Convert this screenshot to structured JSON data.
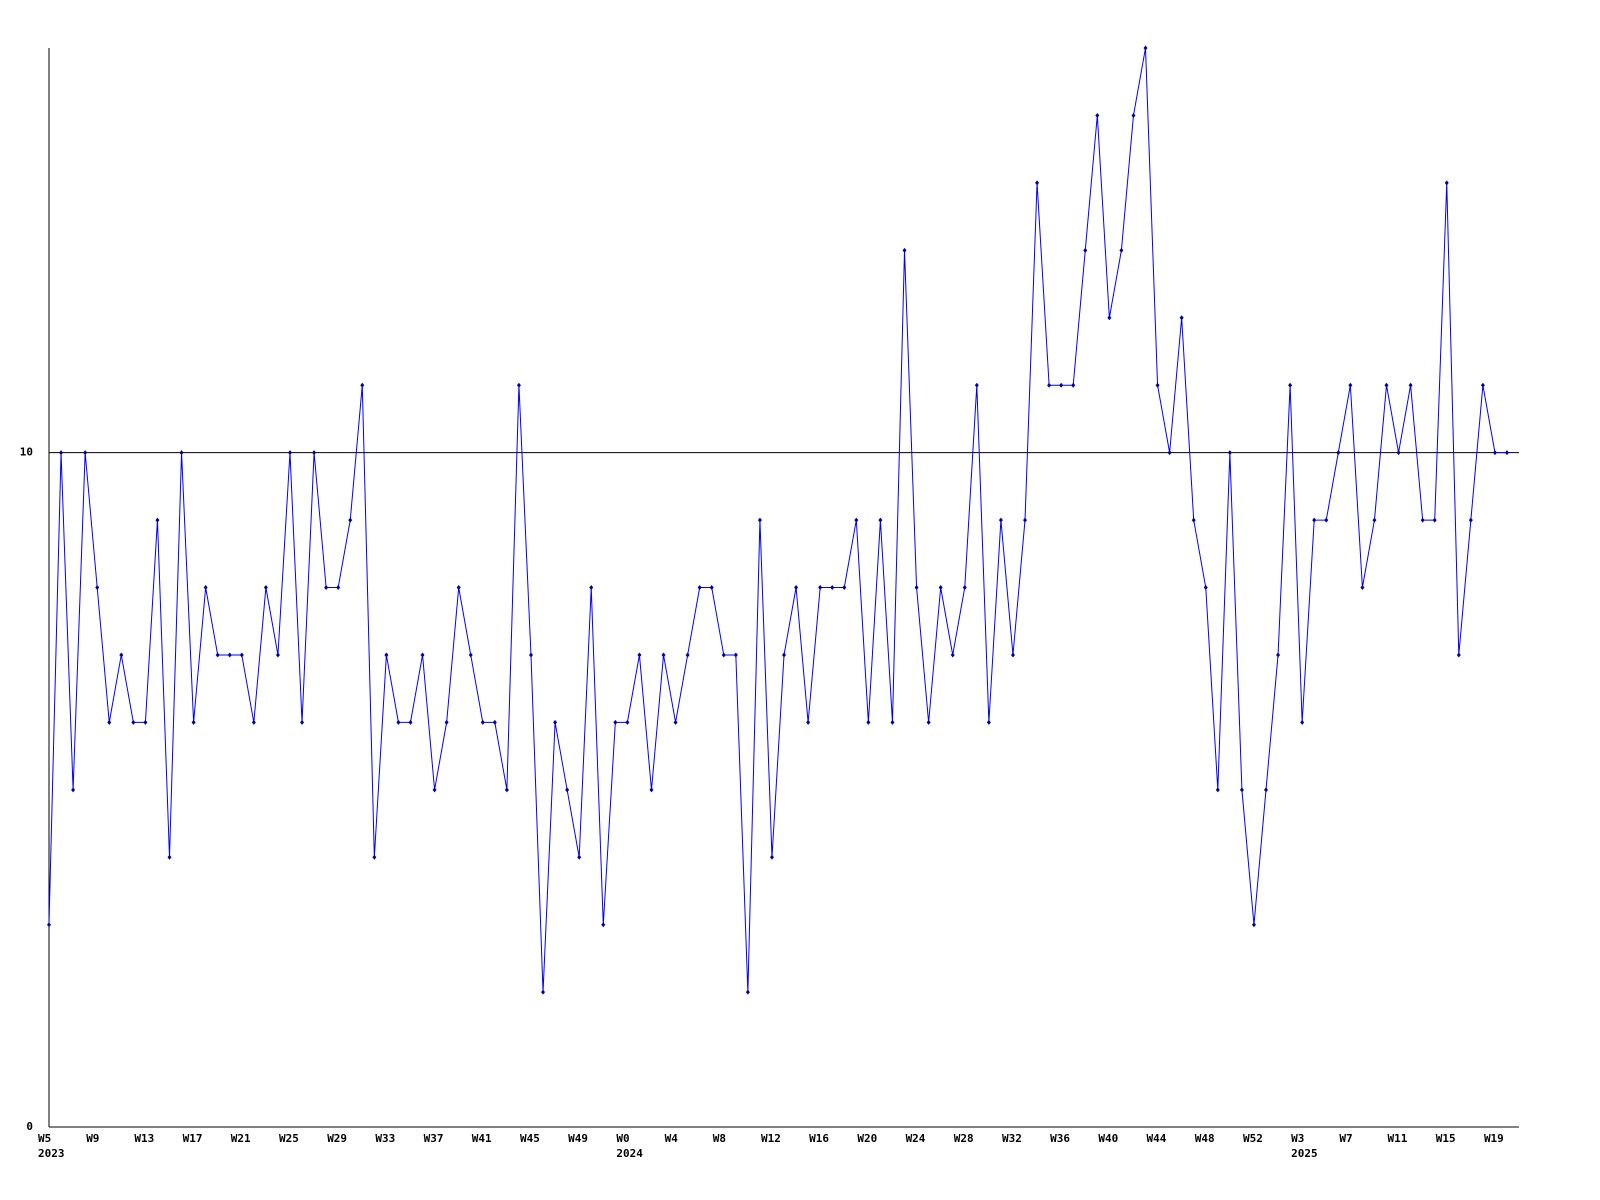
{
  "chart_data": {
    "type": "line",
    "categories": [
      "W5",
      null,
      null,
      null,
      "W9",
      null,
      null,
      null,
      "W13",
      null,
      null,
      null,
      "W17",
      null,
      null,
      null,
      "W21",
      null,
      null,
      null,
      "W25",
      null,
      null,
      null,
      "W29",
      null,
      null,
      null,
      "W33",
      null,
      null,
      null,
      "W37",
      null,
      null,
      null,
      "W41",
      null,
      null,
      null,
      "W45",
      null,
      null,
      null,
      "W49",
      null,
      null,
      null,
      "W0",
      null,
      null,
      null,
      "W4",
      null,
      null,
      null,
      "W8",
      null,
      null,
      null,
      "W12",
      null,
      null,
      null,
      "W16",
      null,
      null,
      null,
      "W20",
      null,
      null,
      null,
      "W24",
      null,
      null,
      null,
      "W28",
      null,
      null,
      null,
      "W32",
      null,
      null,
      null,
      "W36",
      null,
      null,
      null,
      "W40",
      null,
      null,
      null,
      "W44",
      null,
      null,
      null,
      "W48",
      null,
      null,
      null,
      "W52",
      null,
      null,
      null,
      "W3",
      null,
      null,
      null,
      "W7",
      null,
      null,
      null,
      "W11",
      null,
      null,
      null,
      "W15",
      null,
      null,
      null,
      "W19",
      null
    ],
    "years": [
      "2023",
      null,
      null,
      null,
      null,
      null,
      null,
      null,
      null,
      null,
      null,
      null,
      null,
      null,
      null,
      null,
      null,
      null,
      null,
      null,
      null,
      null,
      null,
      null,
      null,
      null,
      null,
      null,
      null,
      null,
      null,
      null,
      null,
      null,
      null,
      null,
      null,
      null,
      null,
      null,
      null,
      null,
      null,
      null,
      null,
      null,
      null,
      null,
      "2024",
      null,
      null,
      null,
      null,
      null,
      null,
      null,
      null,
      null,
      null,
      null,
      null,
      null,
      null,
      null,
      null,
      null,
      null,
      null,
      null,
      null,
      null,
      null,
      null,
      null,
      null,
      null,
      null,
      null,
      null,
      null,
      null,
      null,
      null,
      null,
      null,
      null,
      null,
      null,
      null,
      null,
      null,
      null,
      null,
      null,
      null,
      null,
      null,
      null,
      null,
      null,
      null,
      null,
      null,
      null,
      "2025",
      null,
      null,
      null,
      null,
      null,
      null,
      null,
      null,
      null,
      null,
      null,
      null,
      null,
      null,
      null,
      null,
      null
    ],
    "series": [
      {
        "color": "#0000ff",
        "values": [
          3,
          10,
          5,
          10,
          8,
          6,
          7,
          6,
          6,
          9,
          4,
          10,
          6,
          8,
          7,
          7,
          7,
          6,
          8,
          7,
          10,
          6,
          10,
          8,
          8,
          9,
          11,
          4,
          7,
          6,
          6,
          7,
          5,
          6,
          8,
          7,
          6,
          6,
          5,
          11,
          7,
          2,
          6,
          5,
          4,
          8,
          3,
          6,
          6,
          7,
          5,
          7,
          6,
          7,
          8,
          8,
          7,
          7,
          2,
          9,
          4,
          7,
          8,
          6,
          8,
          8,
          8,
          9,
          6,
          9,
          6,
          13,
          8,
          6,
          8,
          7,
          8,
          11,
          6,
          9,
          7,
          9,
          14,
          11,
          11,
          11,
          13,
          15,
          12,
          13,
          15,
          16,
          11,
          10,
          12,
          9,
          8,
          5,
          10,
          5,
          3,
          5,
          7,
          11,
          6,
          9,
          9,
          10,
          11,
          8,
          9,
          11,
          10,
          11,
          9,
          9,
          14,
          7,
          9,
          11,
          10,
          10
        ]
      }
    ],
    "ylim": [
      0,
      16
    ],
    "yticks": [
      0,
      10
    ],
    "grid": true
  }
}
